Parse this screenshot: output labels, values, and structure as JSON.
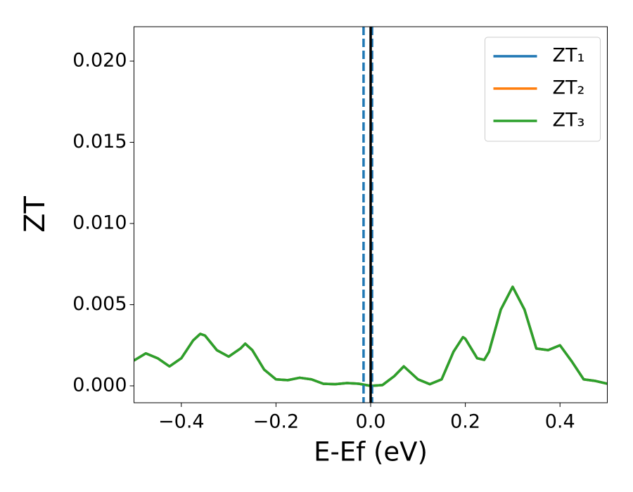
{
  "chart_data": {
    "type": "line",
    "xlabel": "E-Ef (eV)",
    "ylabel": "ZT",
    "x": [
      -0.5,
      -0.475,
      -0.45,
      -0.425,
      -0.4,
      -0.375,
      -0.36,
      -0.35,
      -0.325,
      -0.3,
      -0.275,
      -0.265,
      -0.25,
      -0.225,
      -0.2,
      -0.175,
      -0.15,
      -0.125,
      -0.1,
      -0.075,
      -0.05,
      -0.025,
      0,
      0.025,
      0.05,
      0.07,
      0.1,
      0.125,
      0.15,
      0.175,
      0.195,
      0.2,
      0.225,
      0.24,
      0.25,
      0.275,
      0.3,
      0.325,
      0.35,
      0.375,
      0.4,
      0.425,
      0.45,
      0.475,
      0.5
    ],
    "series": [
      {
        "name": "ZT₁",
        "color": "#1f77b4",
        "values": [
          0.00156,
          0.002,
          0.0017,
          0.0012,
          0.0017,
          0.0028,
          0.0032,
          0.0031,
          0.0022,
          0.0018,
          0.0023,
          0.0026,
          0.0022,
          0.001,
          0.0004,
          0.00035,
          0.0005,
          0.0004,
          0.00013,
          0.0001,
          0.00017,
          0.00013,
          0.0,
          5e-05,
          0.0006,
          0.0012,
          0.0004,
          0.0001,
          0.0004,
          0.0021,
          0.003,
          0.0029,
          0.0017,
          0.0016,
          0.0021,
          0.0047,
          0.0061,
          0.0047,
          0.0023,
          0.0022,
          0.0025,
          0.0015,
          0.0004,
          0.0003,
          0.00013
        ]
      },
      {
        "name": "ZT₂",
        "color": "#ff7f0e",
        "values": [
          0.00156,
          0.002,
          0.0017,
          0.0012,
          0.0017,
          0.0028,
          0.0032,
          0.0031,
          0.0022,
          0.0018,
          0.0023,
          0.0026,
          0.0022,
          0.001,
          0.0004,
          0.00035,
          0.0005,
          0.0004,
          0.00013,
          0.0001,
          0.00017,
          0.00013,
          0.0,
          5e-05,
          0.0006,
          0.0012,
          0.0004,
          0.0001,
          0.0004,
          0.0021,
          0.003,
          0.0029,
          0.0017,
          0.0016,
          0.0021,
          0.0047,
          0.0061,
          0.0047,
          0.0023,
          0.0022,
          0.0025,
          0.0015,
          0.0004,
          0.0003,
          0.00013
        ]
      },
      {
        "name": "ZT₃",
        "color": "#2ca02c",
        "values": [
          0.00156,
          0.002,
          0.0017,
          0.0012,
          0.0017,
          0.0028,
          0.0032,
          0.0031,
          0.0022,
          0.0018,
          0.0023,
          0.0026,
          0.0022,
          0.001,
          0.0004,
          0.00035,
          0.0005,
          0.0004,
          0.00013,
          0.0001,
          0.00017,
          0.00013,
          0.0,
          5e-05,
          0.0006,
          0.0012,
          0.0004,
          0.0001,
          0.0004,
          0.0021,
          0.003,
          0.0029,
          0.0017,
          0.0016,
          0.0021,
          0.0047,
          0.0061,
          0.0047,
          0.0023,
          0.0022,
          0.0025,
          0.0015,
          0.0004,
          0.0003,
          0.00013
        ]
      }
    ],
    "vlines": [
      {
        "value": -0.015,
        "color": "#1f77b4",
        "style": "dashed"
      },
      {
        "value": 0.003,
        "color": "#1f77b4",
        "style": "dashed"
      },
      {
        "value": 0,
        "color": "#000000",
        "style": "solid"
      }
    ],
    "xlim": [
      -0.5,
      0.5
    ],
    "xticks": [
      {
        "value": -0.4,
        "label": "−0.4"
      },
      {
        "value": -0.2,
        "label": "−0.2"
      },
      {
        "value": 0,
        "label": "0.0"
      },
      {
        "value": 0.2,
        "label": "0.2"
      },
      {
        "value": 0.4,
        "label": "0.4"
      }
    ],
    "ylim": [
      -0.00104,
      0.02212
    ],
    "yticks": [
      {
        "value": 0,
        "label": "0.000"
      },
      {
        "value": 0.005,
        "label": "0.005"
      },
      {
        "value": 0.01,
        "label": "0.010"
      },
      {
        "value": 0.015,
        "label": "0.015"
      },
      {
        "value": 0.02,
        "label": "0.020"
      }
    ],
    "legend": "upper right"
  }
}
